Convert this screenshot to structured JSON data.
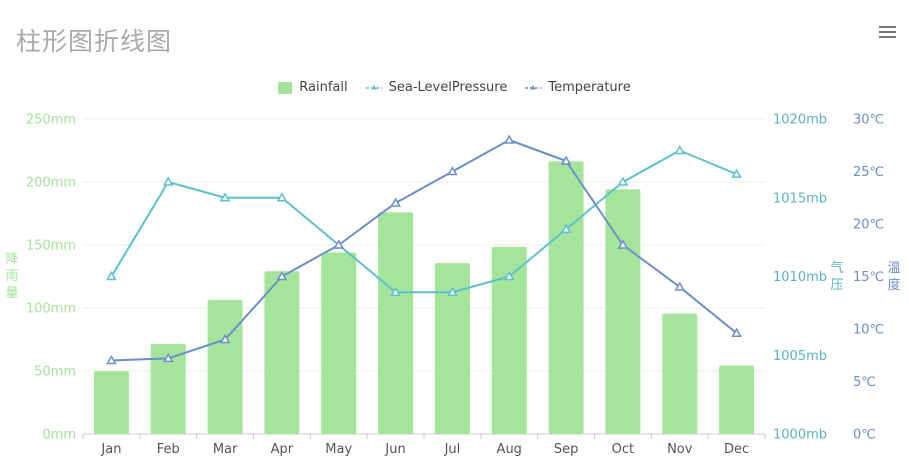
{
  "title": "柱形图折线图",
  "menu_icon": "hamburger-menu-icon",
  "colors": {
    "rainfall": "#a5e49b",
    "rainfall_axis": "#a5e49b",
    "pressure": "#5bc2cd",
    "pressure_axis": "#5ab3c0",
    "temperature": "#6a8fcb",
    "temperature_axis": "#6a8fcb"
  },
  "legend": {
    "rainfall": "Rainfall",
    "pressure": "Sea-LevelPressure",
    "temperature": "Temperature"
  },
  "axis_titles": {
    "rainfall": [
      "降",
      "雨",
      "量"
    ],
    "pressure": [
      "气",
      "压"
    ],
    "temperature": [
      "温",
      "度"
    ]
  },
  "chart_data": {
    "type": "bar+line",
    "title": "柱形图折线图",
    "categories": [
      "Jan",
      "Feb",
      "Mar",
      "Apr",
      "May",
      "Jun",
      "Jul",
      "Aug",
      "Sep",
      "Oct",
      "Nov",
      "Dec"
    ],
    "series": [
      {
        "name": "Rainfall",
        "type": "bar",
        "axis": "rainfall",
        "values": [
          49.9,
          71.5,
          106.4,
          129.2,
          144.0,
          176.0,
          135.6,
          148.5,
          216.4,
          194.1,
          95.6,
          54.4
        ]
      },
      {
        "name": "Sea-LevelPressure",
        "type": "line",
        "axis": "pressure",
        "values": [
          1010,
          1016,
          1015,
          1015,
          1012,
          1009,
          1009,
          1010,
          1013,
          1016,
          1018,
          1016.5
        ]
      },
      {
        "name": "Temperature",
        "type": "line",
        "axis": "temperature",
        "values": [
          7.0,
          7.2,
          9.0,
          15.0,
          18.0,
          22.0,
          25.0,
          28.0,
          26.0,
          18.0,
          14.0,
          9.6
        ]
      }
    ],
    "axes": {
      "rainfall": {
        "title": "降雨量",
        "min": 0,
        "max": 250,
        "ticks": [
          0,
          50,
          100,
          150,
          200,
          250
        ],
        "tick_labels": [
          "0mm",
          "50mm",
          "100mm",
          "150mm",
          "200mm",
          "250mm"
        ]
      },
      "pressure": {
        "title": "气压",
        "min": 1000,
        "max": 1020,
        "ticks": [
          1000,
          1005,
          1010,
          1015,
          1020
        ],
        "tick_labels": [
          "1000mb",
          "1005mb",
          "1010mb",
          "1015mb",
          "1020mb"
        ]
      },
      "temperature": {
        "title": "温度",
        "min": 0,
        "max": 30,
        "ticks": [
          0,
          5,
          10,
          15,
          20,
          25,
          30
        ],
        "tick_labels": [
          "0℃",
          "5℃",
          "10℃",
          "15℃",
          "20℃",
          "25℃",
          "30℃"
        ]
      }
    },
    "grid": true,
    "legend_position": "top-center"
  }
}
